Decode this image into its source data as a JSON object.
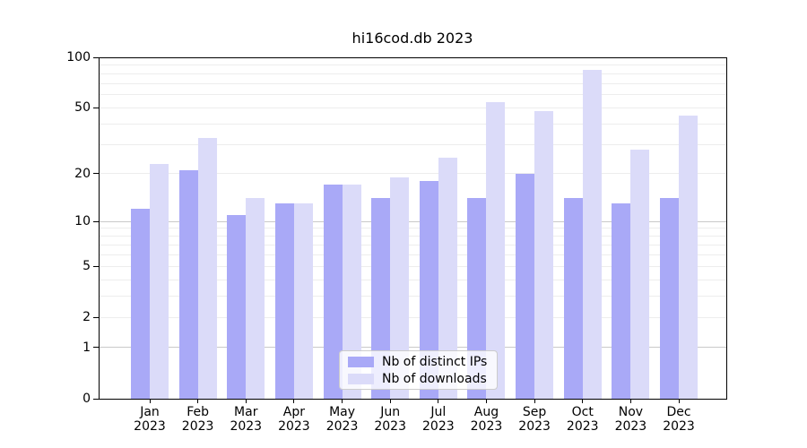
{
  "title": "hi16cod.db 2023",
  "chart_data": {
    "type": "bar",
    "title": "hi16cod.db 2023",
    "categories": [
      "Jan",
      "Feb",
      "Mar",
      "Apr",
      "May",
      "Jun",
      "Jul",
      "Aug",
      "Sep",
      "Oct",
      "Nov",
      "Dec"
    ],
    "category_year": "2023",
    "series": [
      {
        "name": "Nb of distinct IPs",
        "color": "#a9a9f7",
        "values": [
          12,
          21,
          11,
          13,
          17,
          14,
          18,
          14,
          20,
          14,
          13,
          14
        ]
      },
      {
        "name": "Nb of downloads",
        "color": "#dbdbf9",
        "values": [
          23,
          33,
          14,
          13,
          17,
          19,
          25,
          54,
          48,
          84,
          28,
          45
        ]
      }
    ],
    "y_scale": "log(v+1)",
    "y_ticks": [
      0,
      1,
      2,
      5,
      10,
      20,
      50,
      100
    ],
    "y_minor_gridlines": [
      2,
      3,
      4,
      5,
      6,
      7,
      8,
      9,
      20,
      30,
      40,
      50,
      60,
      70,
      80,
      90
    ],
    "y_major_gridlines": [
      1,
      10,
      100
    ],
    "ylim": [
      0,
      100
    ],
    "grid": true,
    "legend_position": "lower center"
  }
}
